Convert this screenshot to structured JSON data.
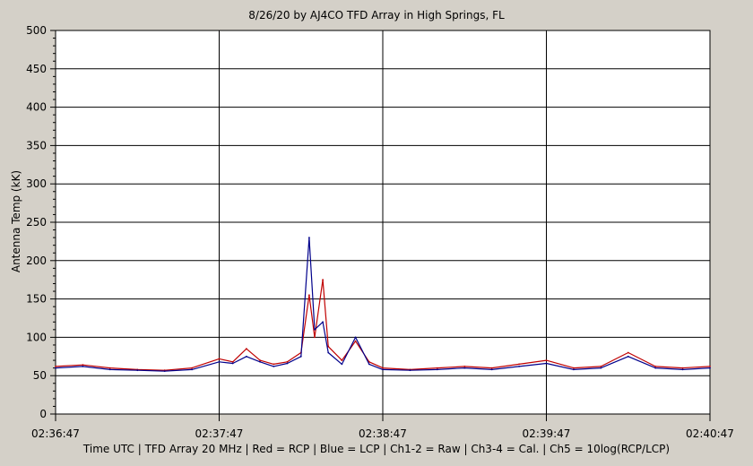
{
  "chart_data": {
    "type": "line",
    "title": "8/26/20  by  AJ4CO TFD Array  in  High Springs, FL",
    "xlabel": "Time UTC | TFD Array 20 MHz | Red = RCP | Blue = LCP | Ch1-2 = Raw | Ch3-4 = Cal. | Ch5 = 10log(RCP/LCP)",
    "ylabel": "Antenna Temp (kK)",
    "x_tick_labels": [
      "02:36:47",
      "02:37:47",
      "02:38:47",
      "02:39:47",
      "02:40:47"
    ],
    "y_tick_labels": [
      "0",
      "50",
      "100",
      "150",
      "200",
      "250",
      "300",
      "350",
      "400",
      "450",
      "500"
    ],
    "xlim": [
      "02:36:47",
      "02:40:47"
    ],
    "ylim": [
      0,
      500
    ],
    "grid": true,
    "series": [
      {
        "name": "RCP",
        "color": "#c00000",
        "x": [
          "02:36:47",
          "02:36:57",
          "02:37:07",
          "02:37:17",
          "02:37:27",
          "02:37:37",
          "02:37:47",
          "02:37:52",
          "02:37:57",
          "02:38:02",
          "02:38:07",
          "02:38:12",
          "02:38:17",
          "02:38:20",
          "02:38:22",
          "02:38:25",
          "02:38:27",
          "02:38:32",
          "02:38:37",
          "02:38:42",
          "02:38:47",
          "02:38:57",
          "02:39:07",
          "02:39:17",
          "02:39:27",
          "02:39:37",
          "02:39:47",
          "02:39:57",
          "02:40:07",
          "02:40:17",
          "02:40:27",
          "02:40:37",
          "02:40:47"
        ],
        "values": [
          62,
          64,
          60,
          58,
          57,
          60,
          72,
          68,
          85,
          70,
          65,
          68,
          80,
          155,
          100,
          175,
          88,
          70,
          95,
          68,
          60,
          58,
          60,
          62,
          60,
          65,
          70,
          60,
          62,
          80,
          62,
          60,
          62
        ]
      },
      {
        "name": "LCP",
        "color": "#00008b",
        "x": [
          "02:36:47",
          "02:36:57",
          "02:37:07",
          "02:37:17",
          "02:37:27",
          "02:37:37",
          "02:37:47",
          "02:37:52",
          "02:37:57",
          "02:38:02",
          "02:38:07",
          "02:38:12",
          "02:38:17",
          "02:38:20",
          "02:38:22",
          "02:38:25",
          "02:38:27",
          "02:38:32",
          "02:38:37",
          "02:38:42",
          "02:38:47",
          "02:38:57",
          "02:39:07",
          "02:39:17",
          "02:39:27",
          "02:39:37",
          "02:39:47",
          "02:39:57",
          "02:40:07",
          "02:40:17",
          "02:40:27",
          "02:40:37",
          "02:40:47"
        ],
        "values": [
          60,
          62,
          58,
          57,
          56,
          58,
          68,
          66,
          75,
          68,
          62,
          66,
          75,
          230,
          110,
          120,
          80,
          65,
          100,
          65,
          58,
          57,
          58,
          60,
          58,
          62,
          66,
          58,
          60,
          75,
          60,
          58,
          60
        ]
      }
    ]
  }
}
